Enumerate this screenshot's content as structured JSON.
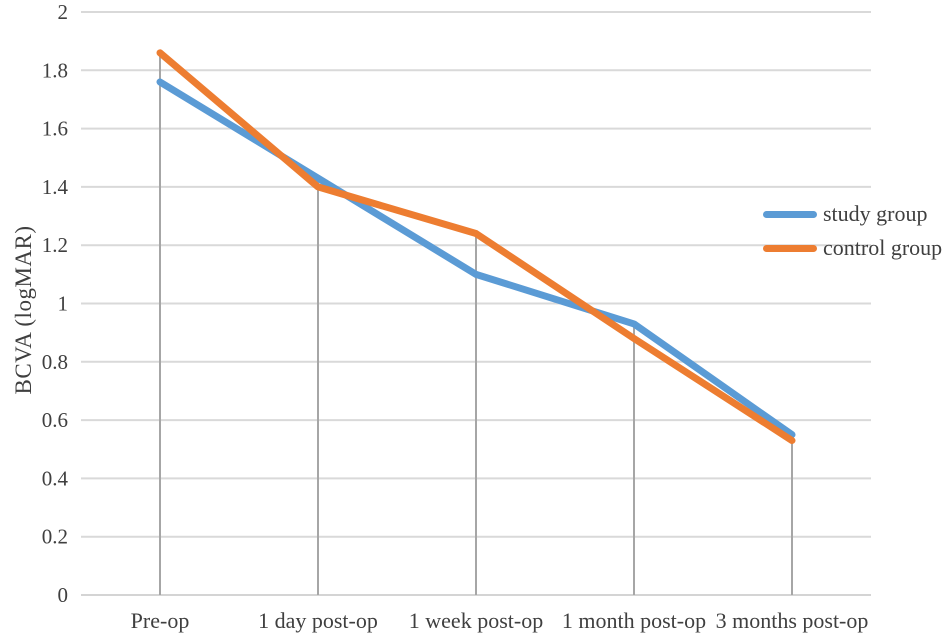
{
  "chart_data": {
    "type": "line",
    "title": "",
    "categories": [
      "Pre-op",
      "1 day post-op",
      "1 week post-op",
      "1 month post-op",
      "3 months post-op"
    ],
    "series": [
      {
        "name": "study group",
        "color": "#5B9BD5",
        "values": [
          1.76,
          1.43,
          1.1,
          0.93,
          0.55
        ]
      },
      {
        "name": "control group",
        "color": "#ED7D31",
        "values": [
          1.86,
          1.4,
          1.24,
          0.88,
          0.53
        ]
      }
    ],
    "xlabel": "",
    "ylabel": "BCVA (logMAR)",
    "ylim": [
      0,
      2
    ],
    "ytick_step": 0.2,
    "ytick_labels": [
      "0",
      "0.2",
      "0.4",
      "0.6",
      "0.8",
      "1",
      "1.2",
      "1.4",
      "1.6",
      "1.8",
      "2"
    ],
    "grid": true,
    "drop_lines": true,
    "legend_position": "right-inside",
    "colors": {
      "gridline": "#D9D9D9",
      "axis_line": "#D4D4D4",
      "drop_line": "#A6A6A6",
      "text": "#3F3F3F"
    }
  }
}
